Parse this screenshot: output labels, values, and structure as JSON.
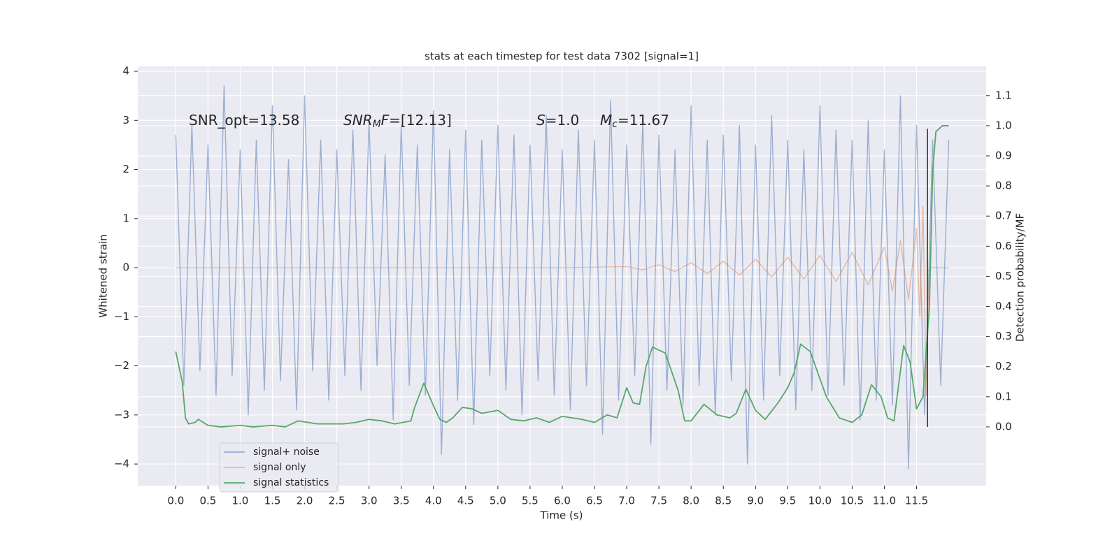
{
  "chart_data": {
    "type": "line",
    "title": "stats at each timestep for test data 7302 [signal=1]",
    "xlabel": "Time (s)",
    "ylabel": "Whitened strain",
    "y2label": "Detection probability/MF",
    "xlim": [
      -0.59,
      12.58
    ],
    "ylim": [
      -4.44,
      4.1
    ],
    "y2lim": [
      -0.195,
      1.197
    ],
    "xticks": [
      {
        "value": 0,
        "label": "0.0"
      },
      0.5,
      {
        "value": 1,
        "label": "1.0"
      },
      1.5,
      {
        "value": 2,
        "label": "2.0"
      },
      2.5,
      {
        "value": 3,
        "label": "3.0"
      },
      3.5,
      {
        "value": 4,
        "label": "4.0"
      },
      4.5,
      {
        "value": 5,
        "label": "5.0"
      },
      5.5,
      {
        "value": 6,
        "label": "6.0"
      },
      6.5,
      {
        "value": 7,
        "label": "7.0"
      },
      7.5,
      {
        "value": 8,
        "label": "8.0"
      },
      8.5,
      {
        "value": 9,
        "label": "9.0"
      },
      9.5,
      {
        "value": 10,
        "label": "10.0"
      },
      10.5,
      {
        "value": 11,
        "label": "11.0"
      },
      11.5
    ],
    "yticks": [
      {
        "value": -4,
        "label": "−4"
      },
      {
        "value": -3,
        "label": "−3"
      },
      {
        "value": -2,
        "label": "−2"
      },
      {
        "value": -1,
        "label": "−1"
      },
      0,
      1,
      2,
      3,
      4
    ],
    "y2ticks": [
      {
        "value": 0,
        "label": "0.0"
      },
      0.1,
      0.2,
      0.3,
      0.4,
      0.5,
      0.6,
      0.7,
      0.8,
      0.9,
      {
        "value": 1,
        "label": "1.0"
      },
      1.1
    ],
    "grid": true,
    "legend": "lower left",
    "series": [
      {
        "name": "signal+ noise",
        "color": "#4c72b0",
        "opacity": 0.5,
        "x": [
          0,
          0.125,
          0.25,
          0.375,
          0.5,
          0.625,
          0.75,
          0.875,
          1,
          1.125,
          1.25,
          1.375,
          1.5,
          1.625,
          1.75,
          1.875,
          2,
          2.125,
          2.25,
          2.375,
          2.5,
          2.625,
          2.75,
          2.875,
          3,
          3.125,
          3.25,
          3.375,
          3.5,
          3.625,
          3.75,
          3.875,
          4,
          4.125,
          4.25,
          4.375,
          4.5,
          4.625,
          4.75,
          4.875,
          5,
          5.125,
          5.25,
          5.375,
          5.5,
          5.625,
          5.75,
          5.875,
          6,
          6.125,
          6.25,
          6.375,
          6.5,
          6.625,
          6.75,
          6.875,
          7,
          7.125,
          7.25,
          7.375,
          7.5,
          7.625,
          7.75,
          7.875,
          8,
          8.125,
          8.25,
          8.375,
          8.5,
          8.625,
          8.75,
          8.875,
          9,
          9.125,
          9.25,
          9.375,
          9.5,
          9.625,
          9.75,
          9.875,
          10,
          10.125,
          10.25,
          10.375,
          10.5,
          10.625,
          10.75,
          10.875,
          11,
          11.125,
          11.25,
          11.375,
          11.5,
          11.625,
          11.75,
          11.875,
          12
        ],
        "values": [
          2.7,
          -2.4,
          2.9,
          -2.1,
          2.5,
          -2.6,
          3.7,
          -2.2,
          2.4,
          -3.0,
          2.6,
          -2.5,
          3.3,
          -2.3,
          2.2,
          -2.9,
          3.5,
          -2.1,
          2.6,
          -2.7,
          2.4,
          -2.2,
          2.8,
          -2.5,
          3.0,
          -2.0,
          2.3,
          -3.1,
          2.9,
          -2.4,
          2.5,
          -2.6,
          3.2,
          -3.8,
          2.4,
          -2.7,
          2.8,
          -3.2,
          2.6,
          -2.2,
          2.9,
          -2.5,
          2.7,
          -3.0,
          2.5,
          -2.3,
          3.1,
          -2.6,
          2.4,
          -2.9,
          2.8,
          -2.4,
          2.6,
          -3.4,
          3.4,
          -2.7,
          2.5,
          -2.2,
          3.0,
          -3.6,
          2.7,
          -2.5,
          2.4,
          -2.8,
          3.3,
          -2.4,
          2.6,
          -3.0,
          2.7,
          -2.3,
          2.9,
          -4.0,
          2.5,
          -2.7,
          3.1,
          -2.2,
          2.6,
          -2.9,
          2.4,
          -2.5,
          3.3,
          -2.6,
          2.8,
          -2.4,
          2.6,
          -3.1,
          3.0,
          -2.7,
          2.4,
          -2.8,
          3.5,
          -4.1,
          2.9,
          -3.0,
          2.6,
          -2.4,
          2.6
        ]
      },
      {
        "name": "signal only",
        "color": "#dd8452",
        "opacity": 0.5,
        "x": [
          0,
          1,
          2,
          3,
          4,
          5,
          6,
          7,
          7.25,
          7.5,
          7.75,
          8,
          8.25,
          8.5,
          8.75,
          9,
          9.25,
          9.5,
          9.75,
          10,
          10.25,
          10.5,
          10.75,
          11,
          11.125,
          11.25,
          11.375,
          11.5,
          11.55,
          11.6,
          11.65,
          11.7,
          12.0
        ],
        "values": [
          0,
          0,
          0,
          0,
          0,
          0,
          0,
          0.02,
          -0.04,
          0.06,
          -0.08,
          0.1,
          -0.12,
          0.13,
          -0.15,
          0.17,
          -0.19,
          0.21,
          -0.23,
          0.25,
          -0.28,
          0.31,
          -0.35,
          0.42,
          -0.48,
          0.55,
          -0.65,
          0.8,
          -1.0,
          1.25,
          -2.6,
          0,
          0
        ]
      },
      {
        "name": "signal statistics",
        "color": "#55a868",
        "opacity": 1,
        "axis": "y2",
        "x": [
          0,
          0.1,
          0.15,
          0.2,
          0.3,
          0.35,
          0.5,
          0.7,
          1.0,
          1.2,
          1.5,
          1.7,
          1.9,
          2.2,
          2.6,
          2.8,
          3.0,
          3.2,
          3.4,
          3.65,
          3.7,
          3.85,
          4.0,
          4.1,
          4.2,
          4.3,
          4.45,
          4.6,
          4.75,
          5.0,
          5.2,
          5.4,
          5.6,
          5.8,
          6.0,
          6.3,
          6.5,
          6.7,
          6.85,
          7.0,
          7.1,
          7.2,
          7.3,
          7.4,
          7.6,
          7.8,
          7.9,
          8.0,
          8.2,
          8.4,
          8.6,
          8.7,
          8.85,
          9.0,
          9.15,
          9.35,
          9.5,
          9.6,
          9.7,
          9.85,
          10.1,
          10.3,
          10.5,
          10.65,
          10.8,
          10.95,
          11.05,
          11.15,
          11.3,
          11.4,
          11.5,
          11.6,
          11.7,
          11.75,
          11.8,
          11.9,
          12.0
        ],
        "values": [
          0.25,
          0.15,
          0.03,
          0.01,
          0.015,
          0.025,
          0.005,
          0.0,
          0.005,
          0.0,
          0.005,
          0.0,
          0.02,
          0.01,
          0.01,
          0.015,
          0.025,
          0.02,
          0.01,
          0.02,
          0.06,
          0.145,
          0.07,
          0.025,
          0.015,
          0.03,
          0.065,
          0.06,
          0.045,
          0.055,
          0.025,
          0.02,
          0.03,
          0.015,
          0.035,
          0.025,
          0.015,
          0.04,
          0.03,
          0.13,
          0.08,
          0.075,
          0.2,
          0.265,
          0.245,
          0.12,
          0.02,
          0.02,
          0.075,
          0.04,
          0.03,
          0.045,
          0.125,
          0.055,
          0.025,
          0.08,
          0.13,
          0.18,
          0.275,
          0.25,
          0.1,
          0.03,
          0.015,
          0.04,
          0.14,
          0.1,
          0.03,
          0.02,
          0.27,
          0.215,
          0.06,
          0.1,
          0.4,
          0.85,
          0.98,
          1.0,
          1.0
        ]
      }
    ],
    "vline": {
      "x": 11.67,
      "y2_range": [
        0.0,
        0.99
      ],
      "color": "#333333"
    },
    "annotations": [
      {
        "parts": [
          {
            "text": "SNR_opt=13.58"
          }
        ]
      },
      {
        "parts": [
          {
            "text": "SNR",
            "italic": true
          },
          {
            "text": "M",
            "italic": true,
            "sub": true
          },
          {
            "text": "F",
            "italic": true
          },
          {
            "text": "=[12.13]"
          }
        ]
      },
      {
        "parts": [
          {
            "text": "S",
            "italic": true
          },
          {
            "text": "=1.0"
          }
        ]
      },
      {
        "parts": [
          {
            "text": "M",
            "italic": true
          },
          {
            "text": "c",
            "italic": true,
            "sub": true
          },
          {
            "text": "=11.67"
          }
        ]
      }
    ]
  }
}
